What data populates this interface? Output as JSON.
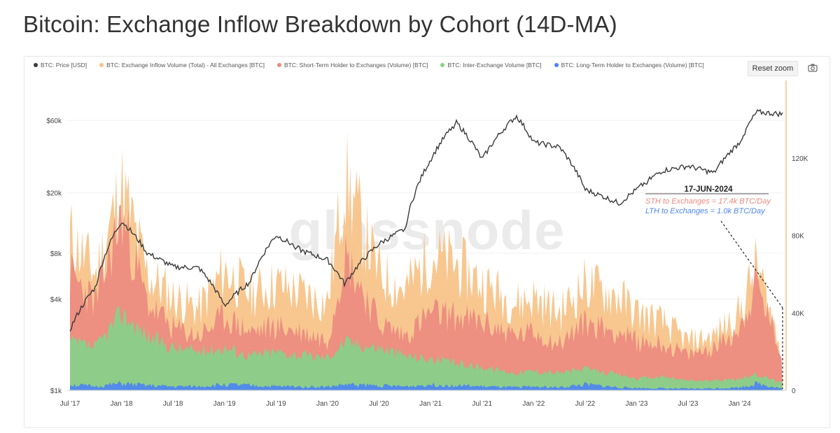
{
  "title": "Bitcoin: Exchange Inflow Breakdown by Cohort (14D-MA)",
  "toolbar": {
    "reset_zoom": "Reset zoom"
  },
  "icons": {
    "camera": "camera-icon"
  },
  "colors": {
    "price": "#3a3a3a",
    "total": "#f7c287",
    "sth": "#ec8a80",
    "inter": "#86d38a",
    "lth": "#4d86f0",
    "right_axis": "#f7c287"
  },
  "watermark": "glassnode",
  "annotation": {
    "date": "17-JUN-2024",
    "sth": "STH to Exchanges = 17.4k BTC/Day",
    "lth": "LTH to Exchanges = 1.0k BTC/Day"
  },
  "chart_data": {
    "type": "area",
    "legend_position": "top-left",
    "grid": true,
    "left_axis": {
      "scale": "log",
      "ticks": [
        "$60k",
        "$20k",
        "$8k",
        "$4k",
        "$1k"
      ]
    },
    "right_axis": {
      "ylim": [
        0,
        160000
      ],
      "ticks": [
        "120K",
        "80K",
        "40K",
        "0"
      ]
    },
    "x_ticks": [
      "Jul '17",
      "Jan '18",
      "Jul '18",
      "Jan '19",
      "Jul '19",
      "Jan '20",
      "Jul '20",
      "Jan '21",
      "Jul '21",
      "Jan '22",
      "Jul '22",
      "Jan '23",
      "Jul '23",
      "Jan '24"
    ],
    "dates": [
      "2017-07",
      "2017-10",
      "2018-01",
      "2018-04",
      "2018-07",
      "2018-10",
      "2019-01",
      "2019-04",
      "2019-07",
      "2019-10",
      "2020-01",
      "2020-03",
      "2020-07",
      "2020-10",
      "2021-01",
      "2021-04",
      "2021-07",
      "2021-11",
      "2022-01",
      "2022-04",
      "2022-07",
      "2022-11",
      "2023-01",
      "2023-04",
      "2023-07",
      "2023-10",
      "2024-01",
      "2024-03",
      "2024-06"
    ],
    "series": [
      {
        "name": "BTC: Price [USD]",
        "axis": "left",
        "values": [
          2500,
          4800,
          13000,
          8000,
          6500,
          6400,
          3600,
          5200,
          10500,
          8300,
          7200,
          5000,
          9200,
          11500,
          33000,
          58000,
          33000,
          64000,
          43000,
          40000,
          21000,
          17000,
          21000,
          28000,
          30000,
          27000,
          43000,
          68000,
          66000
        ]
      },
      {
        "name": "BTC: Exchange Inflow Volume (Total) - All Exchanges [BTC]",
        "axis": "right",
        "values": [
          80000,
          60000,
          105000,
          60000,
          48000,
          42000,
          62000,
          50000,
          55000,
          50000,
          45000,
          110000,
          60000,
          52000,
          70000,
          65000,
          55000,
          45000,
          48000,
          40000,
          55000,
          48000,
          40000,
          35000,
          25000,
          28000,
          40000,
          65000,
          18000
        ]
      },
      {
        "name": "BTC: Short-Term Holder to Exchanges (Volume) [BTC]",
        "axis": "right",
        "values": [
          60000,
          45000,
          90000,
          45000,
          32000,
          28000,
          38000,
          30000,
          33000,
          30000,
          26000,
          70000,
          35000,
          28000,
          40000,
          38000,
          35000,
          28000,
          30000,
          24000,
          35000,
          30000,
          25000,
          24000,
          18000,
          22000,
          32000,
          55000,
          17400
        ]
      },
      {
        "name": "BTC: Inter-Exchange Volume [BTC]",
        "axis": "right",
        "values": [
          25000,
          22000,
          40000,
          28000,
          22000,
          20000,
          22000,
          18000,
          20000,
          18000,
          17000,
          25000,
          22000,
          18000,
          16000,
          14000,
          12000,
          9000,
          10000,
          9000,
          11000,
          8000,
          6000,
          7000,
          5000,
          5000,
          6000,
          8000,
          4000
        ]
      },
      {
        "name": "BTC: Long-Term Holder to Exchanges (Volume) [BTC]",
        "axis": "right",
        "values": [
          3000,
          2000,
          3500,
          2500,
          2000,
          2000,
          3000,
          2500,
          2000,
          2000,
          1800,
          3000,
          2500,
          2000,
          3000,
          2500,
          2000,
          1500,
          2000,
          1500,
          3000,
          1500,
          1200,
          1000,
          800,
          1000,
          1500,
          3500,
          1000
        ]
      }
    ]
  }
}
